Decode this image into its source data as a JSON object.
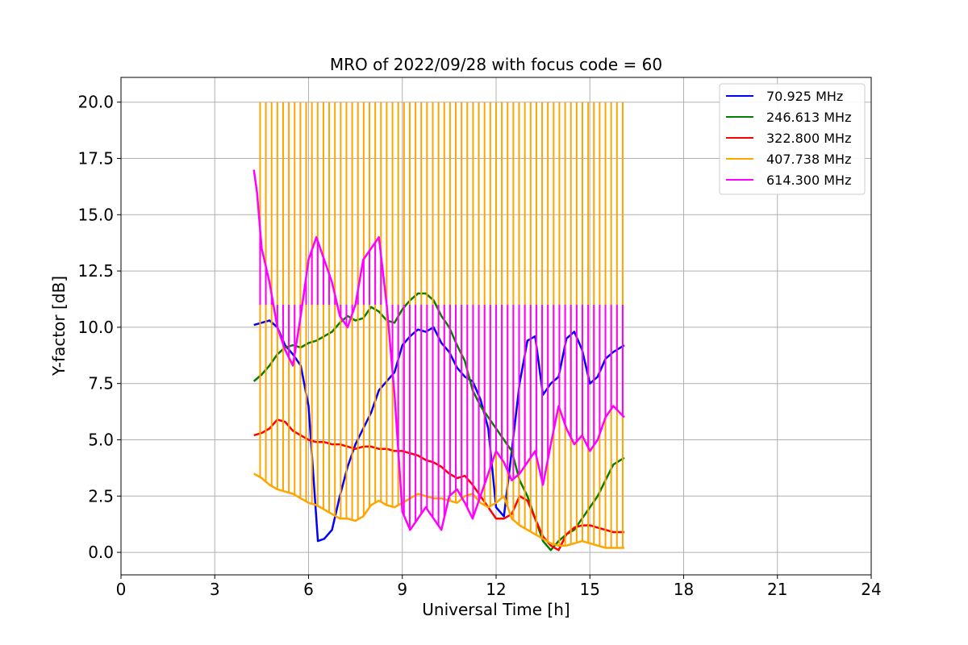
{
  "chart_data": {
    "type": "line",
    "title": "MRO of 2022/09/28 with focus code = 60",
    "xlabel": "Universal Time [h]",
    "ylabel": "Y-factor [dB]",
    "xlim": [
      0,
      24
    ],
    "ylim": [
      -1.0,
      21.1
    ],
    "xticks": [
      0,
      3,
      6,
      9,
      12,
      15,
      18,
      21,
      24
    ],
    "xtick_labels": [
      "0",
      "3",
      "6",
      "9",
      "12",
      "15",
      "18",
      "21",
      "24"
    ],
    "yticks": [
      0.0,
      2.5,
      5.0,
      7.5,
      10.0,
      12.5,
      15.0,
      17.5,
      20.0
    ],
    "ytick_labels": [
      "0.0",
      "2.5",
      "5.0",
      "7.5",
      "10.0",
      "12.5",
      "15.0",
      "17.5",
      "20.0"
    ],
    "grid": true,
    "legend_position": "upper right",
    "series": [
      {
        "name": " 70.925 MHz",
        "color": "#0000ff",
        "x": [
          4.25,
          4.5,
          4.75,
          5.0,
          5.25,
          5.5,
          5.75,
          6.0,
          6.15,
          6.3,
          6.5,
          6.75,
          7.0,
          7.25,
          7.5,
          7.75,
          8.0,
          8.25,
          8.5,
          8.75,
          9.0,
          9.25,
          9.5,
          9.75,
          10.0,
          10.25,
          10.5,
          10.75,
          11.0,
          11.25,
          11.5,
          11.75,
          12.0,
          12.25,
          12.5,
          12.75,
          13.0,
          13.25,
          13.5,
          13.75,
          14.0,
          14.25,
          14.5,
          14.75,
          15.0,
          15.25,
          15.5,
          15.75,
          16.1
        ],
        "y": [
          10.1,
          10.2,
          10.3,
          10.0,
          9.2,
          8.8,
          8.3,
          6.5,
          3.5,
          0.5,
          0.6,
          1.0,
          2.5,
          3.8,
          4.8,
          5.5,
          6.2,
          7.2,
          7.6,
          8.0,
          9.2,
          9.6,
          9.9,
          9.8,
          10.0,
          9.3,
          8.9,
          8.2,
          7.8,
          7.6,
          6.8,
          5.5,
          2.0,
          1.6,
          4.5,
          7.5,
          9.4,
          9.6,
          7.0,
          7.5,
          7.8,
          9.5,
          9.8,
          9.0,
          7.5,
          7.8,
          8.6,
          8.9,
          9.2
        ]
      },
      {
        "name": "246.613 MHz",
        "color": "#008000",
        "x": [
          4.25,
          4.5,
          4.75,
          5.0,
          5.25,
          5.5,
          5.75,
          6.0,
          6.25,
          6.5,
          6.75,
          7.0,
          7.25,
          7.5,
          7.75,
          8.0,
          8.25,
          8.5,
          8.75,
          9.0,
          9.25,
          9.5,
          9.75,
          10.0,
          10.25,
          10.5,
          10.75,
          11.0,
          11.25,
          11.5,
          11.75,
          12.0,
          12.25,
          12.5,
          12.75,
          13.0,
          13.25,
          13.5,
          13.75,
          14.0,
          14.25,
          14.5,
          14.75,
          15.0,
          15.25,
          15.5,
          15.75,
          16.1
        ],
        "y": [
          7.6,
          7.9,
          8.3,
          8.8,
          9.1,
          9.2,
          9.1,
          9.3,
          9.4,
          9.6,
          9.8,
          10.2,
          10.5,
          10.3,
          10.4,
          10.9,
          10.7,
          10.3,
          10.2,
          10.8,
          11.2,
          11.5,
          11.5,
          11.2,
          10.5,
          10.0,
          9.2,
          8.5,
          7.2,
          6.5,
          6.0,
          5.5,
          5.0,
          4.5,
          3.2,
          2.5,
          1.5,
          0.5,
          0.1,
          0.5,
          0.8,
          1.0,
          1.5,
          2.0,
          2.5,
          3.2,
          3.9,
          4.2
        ]
      },
      {
        "name": "322.800 MHz",
        "color": "#ff0000",
        "x": [
          4.25,
          4.5,
          4.75,
          5.0,
          5.25,
          5.5,
          5.75,
          6.0,
          6.25,
          6.5,
          6.75,
          7.0,
          7.25,
          7.5,
          7.75,
          8.0,
          8.25,
          8.5,
          8.75,
          9.0,
          9.25,
          9.5,
          9.75,
          10.0,
          10.25,
          10.5,
          10.75,
          11.0,
          11.25,
          11.5,
          11.75,
          12.0,
          12.25,
          12.5,
          12.75,
          13.0,
          13.25,
          13.5,
          13.75,
          14.0,
          14.25,
          14.5,
          14.75,
          15.0,
          15.25,
          15.5,
          15.75,
          16.1
        ],
        "y": [
          5.2,
          5.3,
          5.5,
          5.9,
          5.8,
          5.4,
          5.2,
          5.0,
          4.9,
          4.9,
          4.8,
          4.8,
          4.7,
          4.6,
          4.7,
          4.7,
          4.6,
          4.6,
          4.5,
          4.5,
          4.4,
          4.3,
          4.1,
          4.0,
          3.8,
          3.5,
          3.3,
          3.4,
          3.0,
          2.5,
          2.0,
          1.5,
          1.5,
          1.7,
          2.5,
          2.3,
          1.5,
          0.7,
          0.3,
          0.1,
          0.8,
          1.1,
          1.2,
          1.2,
          1.1,
          1.0,
          0.9,
          0.9
        ]
      },
      {
        "name": "407.738 MHz",
        "color": "#ffa500",
        "x": [
          4.25,
          4.5,
          4.75,
          5.0,
          5.25,
          5.5,
          5.75,
          6.0,
          6.25,
          6.5,
          6.75,
          7.0,
          7.25,
          7.5,
          7.75,
          8.0,
          8.25,
          8.5,
          8.75,
          9.0,
          9.25,
          9.5,
          9.75,
          10.0,
          10.25,
          10.5,
          10.75,
          11.0,
          11.25,
          11.5,
          11.75,
          12.0,
          12.25,
          12.5,
          12.75,
          13.0,
          13.25,
          13.5,
          13.75,
          14.0,
          14.25,
          14.5,
          14.75,
          15.0,
          15.25,
          15.5,
          15.75,
          16.1
        ],
        "y": [
          3.5,
          3.3,
          3.0,
          2.8,
          2.7,
          2.6,
          2.4,
          2.2,
          2.1,
          1.9,
          1.7,
          1.5,
          1.5,
          1.4,
          1.6,
          2.1,
          2.3,
          2.1,
          2.0,
          2.2,
          2.4,
          2.6,
          2.5,
          2.4,
          2.4,
          2.3,
          2.2,
          2.5,
          2.6,
          2.2,
          2.0,
          2.2,
          2.5,
          1.5,
          1.2,
          1.0,
          0.8,
          0.6,
          0.4,
          0.3,
          0.3,
          0.4,
          0.5,
          0.4,
          0.3,
          0.2,
          0.2,
          0.2
        ]
      },
      {
        "name": "614.300 MHz",
        "color": "#ff00ff",
        "x": [
          4.25,
          4.35,
          4.5,
          4.75,
          5.0,
          5.25,
          5.5,
          5.75,
          6.0,
          6.25,
          6.5,
          6.75,
          7.0,
          7.25,
          7.5,
          7.75,
          8.0,
          8.25,
          8.5,
          8.75,
          9.0,
          9.25,
          9.5,
          9.75,
          10.0,
          10.25,
          10.5,
          10.75,
          11.0,
          11.25,
          11.5,
          11.75,
          12.0,
          12.25,
          12.5,
          12.75,
          13.0,
          13.25,
          13.5,
          13.75,
          14.0,
          14.25,
          14.5,
          14.75,
          15.0,
          15.25,
          15.5,
          15.75,
          16.1
        ],
        "y": [
          17.0,
          16.0,
          13.5,
          12.0,
          10.0,
          9.0,
          8.3,
          10.5,
          13.0,
          14.0,
          13.0,
          12.0,
          10.5,
          10.0,
          11.0,
          13.0,
          13.5,
          14.0,
          11.0,
          7.0,
          1.8,
          1.0,
          1.5,
          2.0,
          1.5,
          1.0,
          2.5,
          2.8,
          2.2,
          1.5,
          2.5,
          3.5,
          4.5,
          4.0,
          3.2,
          3.5,
          4.0,
          4.5,
          3.0,
          4.8,
          6.5,
          5.5,
          4.8,
          5.2,
          4.5,
          5.0,
          6.0,
          6.5,
          6.0
        ]
      }
    ],
    "sweeps": [
      {
        "series": "407.738 MHz",
        "top": 20.0,
        "start": 4.45,
        "end": 16.05,
        "count": 64
      },
      {
        "series": "614.300 MHz",
        "top": 11.0,
        "start": 4.45,
        "end": 16.05,
        "count": 64
      }
    ]
  }
}
